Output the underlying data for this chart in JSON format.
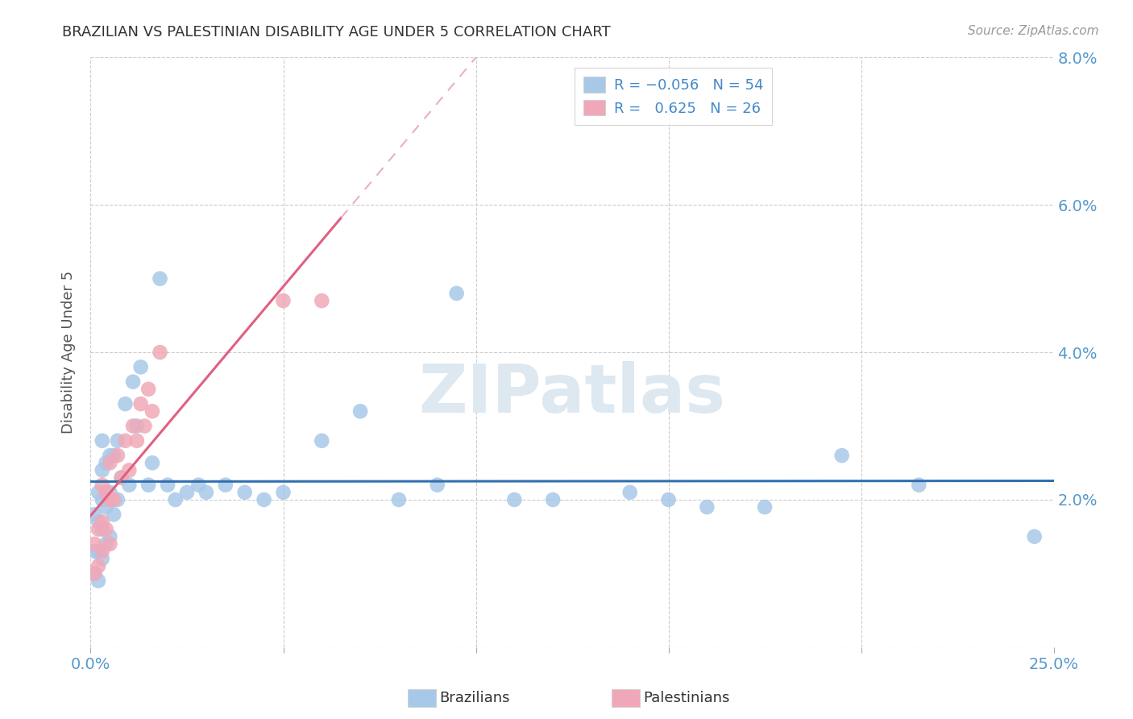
{
  "title": "BRAZILIAN VS PALESTINIAN DISABILITY AGE UNDER 5 CORRELATION CHART",
  "source": "Source: ZipAtlas.com",
  "ylabel": "Disability Age Under 5",
  "xlim": [
    0.0,
    0.25
  ],
  "ylim": [
    0.0,
    0.08
  ],
  "xticks": [
    0.0,
    0.05,
    0.1,
    0.15,
    0.2,
    0.25
  ],
  "xticklabels": [
    "0.0%",
    "",
    "",
    "",
    "",
    "25.0%"
  ],
  "yticks": [
    0.0,
    0.02,
    0.04,
    0.06,
    0.08
  ],
  "yticklabels_right": [
    "",
    "2.0%",
    "4.0%",
    "6.0%",
    "8.0%"
  ],
  "R_brazilian": -0.056,
  "N_brazilian": 54,
  "R_palestinian": 0.625,
  "N_palestinian": 26,
  "brazilian_color": "#a8c8e8",
  "palestinian_color": "#f0a8b8",
  "brazilian_line_color": "#3070b0",
  "palestinian_line_color": "#e06080",
  "palestinian_dashed_color": "#e8b0c0",
  "watermark_color": "#dde8f0",
  "braz_x": [
    0.001,
    0.001,
    0.001,
    0.002,
    0.002,
    0.002,
    0.002,
    0.003,
    0.003,
    0.003,
    0.003,
    0.003,
    0.004,
    0.004,
    0.004,
    0.005,
    0.005,
    0.005,
    0.006,
    0.006,
    0.007,
    0.007,
    0.008,
    0.009,
    0.01,
    0.011,
    0.012,
    0.013,
    0.015,
    0.016,
    0.018,
    0.02,
    0.022,
    0.025,
    0.028,
    0.03,
    0.035,
    0.04,
    0.045,
    0.05,
    0.06,
    0.07,
    0.08,
    0.09,
    0.095,
    0.11,
    0.12,
    0.14,
    0.15,
    0.16,
    0.175,
    0.195,
    0.215,
    0.245
  ],
  "braz_y": [
    0.01,
    0.013,
    0.018,
    0.009,
    0.013,
    0.017,
    0.021,
    0.012,
    0.016,
    0.02,
    0.024,
    0.028,
    0.014,
    0.019,
    0.025,
    0.015,
    0.021,
    0.026,
    0.018,
    0.026,
    0.02,
    0.028,
    0.023,
    0.033,
    0.022,
    0.036,
    0.03,
    0.038,
    0.022,
    0.025,
    0.05,
    0.022,
    0.02,
    0.021,
    0.022,
    0.021,
    0.022,
    0.021,
    0.02,
    0.021,
    0.028,
    0.032,
    0.02,
    0.022,
    0.048,
    0.02,
    0.02,
    0.021,
    0.02,
    0.019,
    0.019,
    0.026,
    0.022,
    0.015
  ],
  "pal_x": [
    0.001,
    0.001,
    0.002,
    0.002,
    0.003,
    0.003,
    0.003,
    0.004,
    0.004,
    0.005,
    0.005,
    0.005,
    0.006,
    0.007,
    0.008,
    0.009,
    0.01,
    0.011,
    0.012,
    0.013,
    0.014,
    0.015,
    0.016,
    0.018,
    0.05,
    0.06
  ],
  "pal_y": [
    0.01,
    0.014,
    0.011,
    0.016,
    0.013,
    0.017,
    0.022,
    0.016,
    0.021,
    0.014,
    0.02,
    0.025,
    0.02,
    0.026,
    0.023,
    0.028,
    0.024,
    0.03,
    0.028,
    0.033,
    0.03,
    0.035,
    0.032,
    0.04,
    0.047,
    0.047
  ]
}
